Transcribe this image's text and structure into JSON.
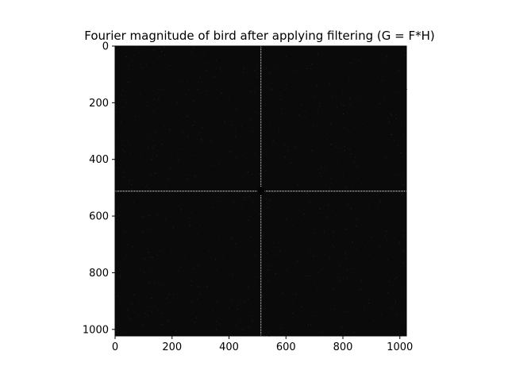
{
  "chart_data": {
    "type": "heatmap",
    "title": "Fourier magnitude of bird after applying filtering (G = F*H)",
    "xlabel": "",
    "ylabel": "",
    "xlim": [
      0,
      1023
    ],
    "ylim": [
      1023,
      0
    ],
    "xticks": [
      0,
      200,
      400,
      600,
      800,
      1000
    ],
    "yticks": [
      0,
      200,
      400,
      600,
      800,
      1000
    ],
    "xtick_labels": [
      "0",
      "200",
      "400",
      "600",
      "800",
      "1000"
    ],
    "ytick_labels": [
      "0",
      "200",
      "400",
      "600",
      "800",
      "1000"
    ],
    "colormap": "gray",
    "background_color": "#0a0a0a",
    "features": {
      "vertical_line_x": 512,
      "horizontal_line_y": 512,
      "line_color": "#e8e8e8",
      "center_dark_spot": [
        512,
        512
      ]
    },
    "grid": false
  }
}
